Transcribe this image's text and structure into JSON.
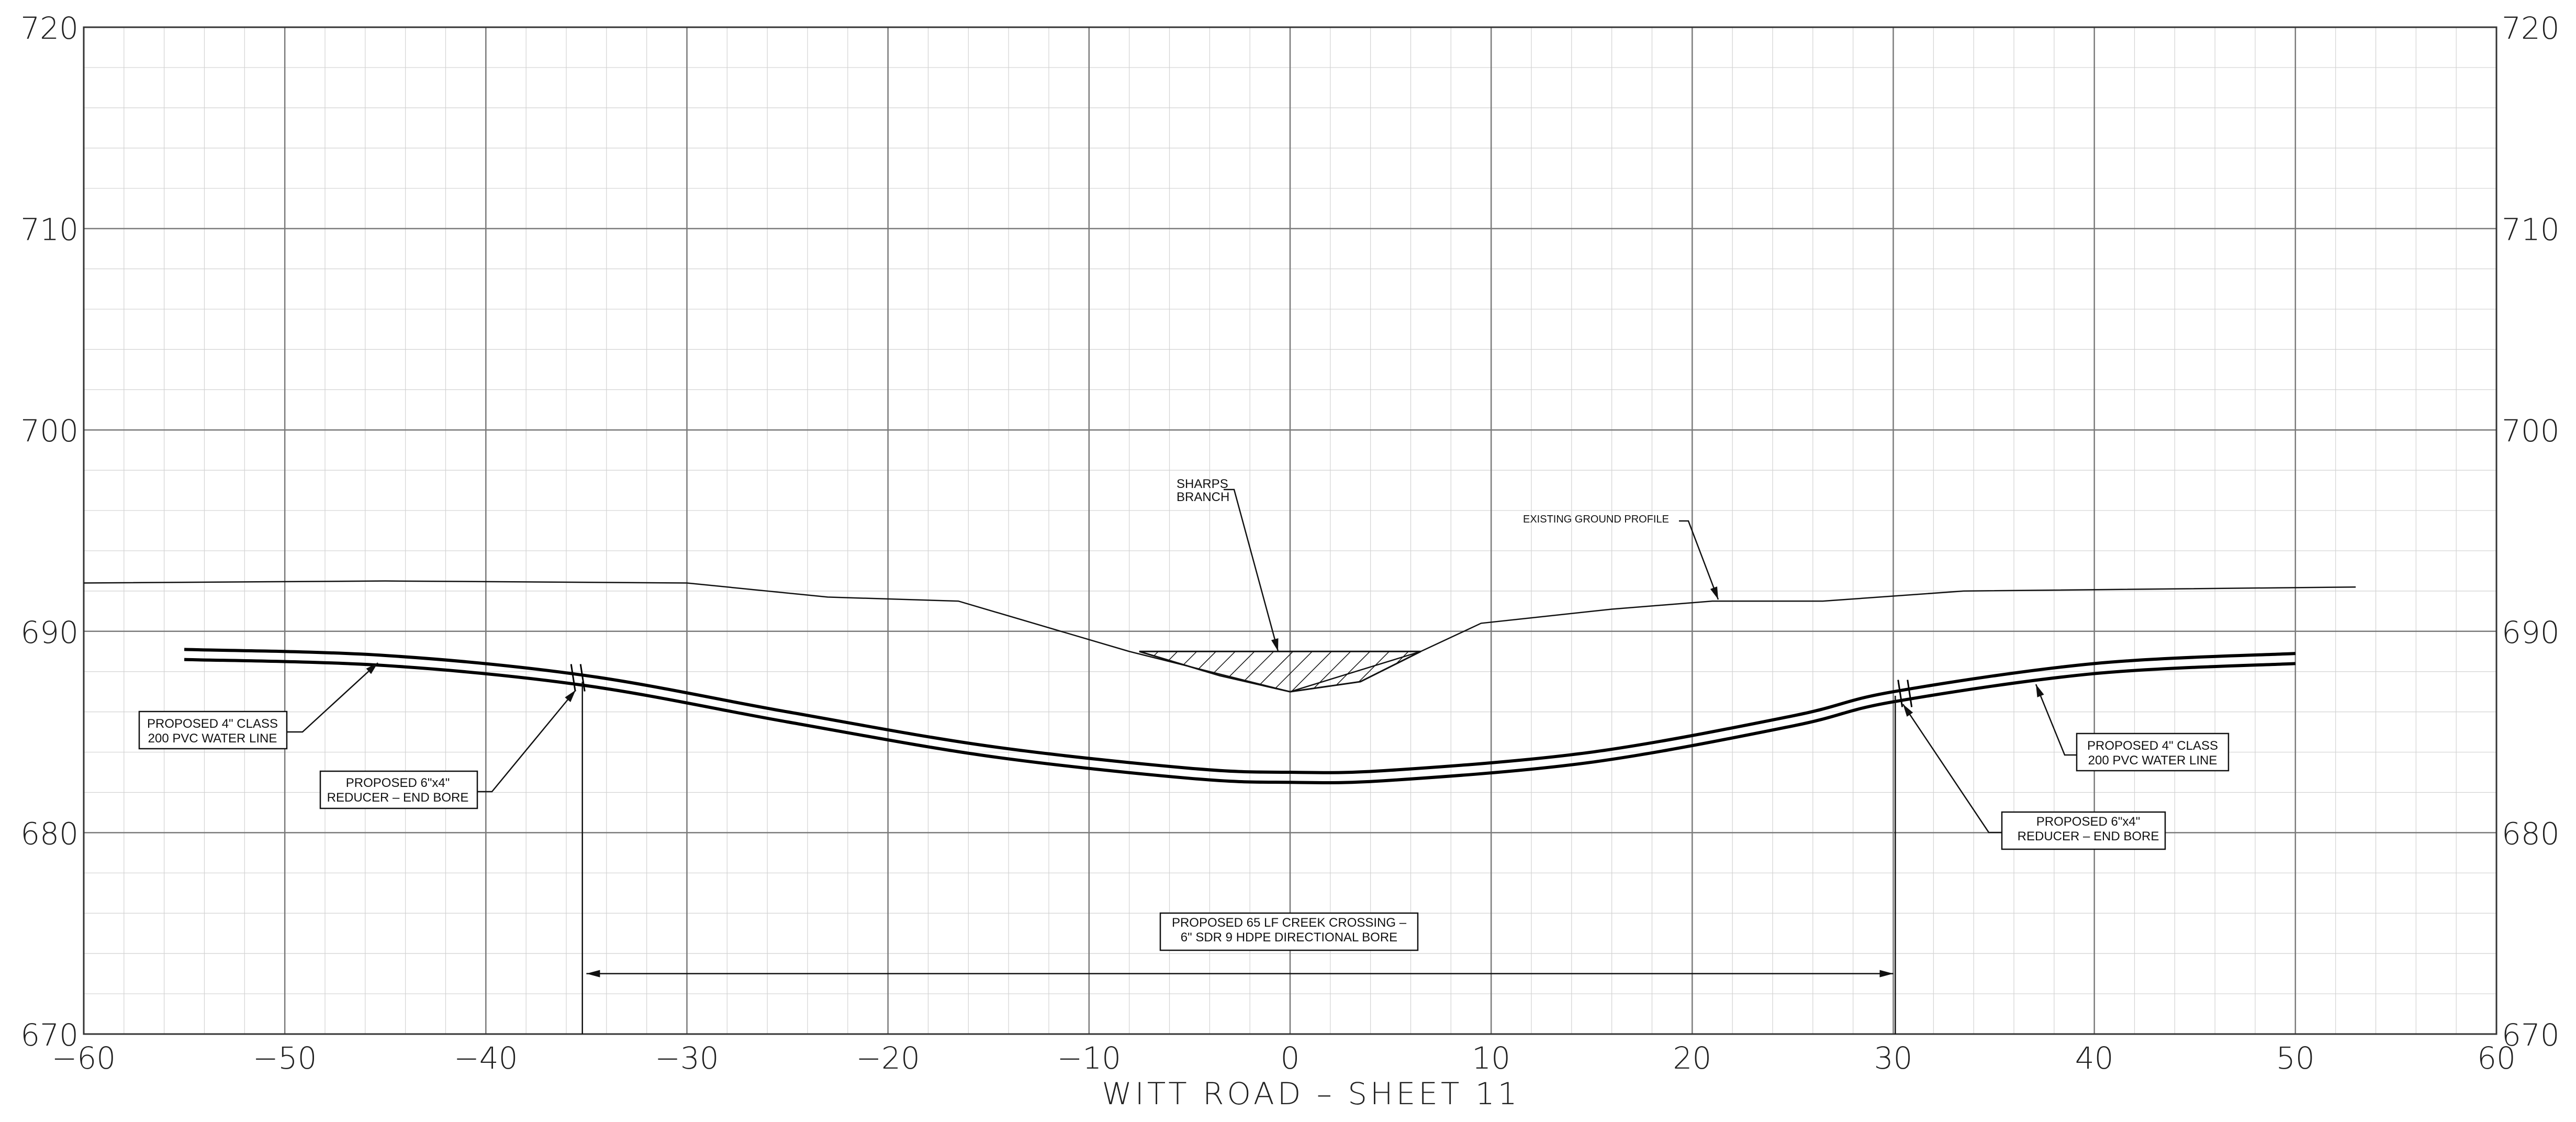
{
  "drawing": {
    "title": "WITT ROAD – SHEET 11",
    "x_ticks": [
      "−60",
      "−50",
      "−40",
      "−30",
      "−20",
      "−10",
      "0",
      "10",
      "20",
      "30",
      "40",
      "50",
      "60"
    ],
    "y_ticks": [
      "670",
      "680",
      "690",
      "700",
      "710",
      "720"
    ],
    "x_range": [
      -60,
      60
    ],
    "y_range": [
      670,
      720
    ],
    "grid": {
      "major_x": 10,
      "major_y": 10,
      "minor_x": 2,
      "minor_y": 2
    }
  },
  "callouts": {
    "sharps_branch": [
      "SHARPS",
      "BRANCH"
    ],
    "existing_ground": [
      "EXISTING GROUND PROFILE"
    ],
    "water_line_left": [
      "PROPOSED 4\" CLASS",
      "200 PVC WATER LINE"
    ],
    "reducer_left": [
      "PROPOSED 6\"x4\"",
      "REDUCER – END BORE"
    ],
    "water_line_right": [
      "PROPOSED 4\" CLASS",
      "200 PVC WATER LINE"
    ],
    "reducer_right": [
      "PROPOSED 6\"x4\"",
      "REDUCER – END BORE"
    ],
    "creek_crossing": [
      "PROPOSED 65 LF CREEK CROSSING –",
      "6\" SDR 9 HDPE DIRECTIONAL BORE"
    ]
  },
  "profiles": {
    "existing_ground": [
      [
        -60,
        692.4
      ],
      [
        -45,
        692.5
      ],
      [
        -30,
        692.4
      ],
      [
        -23,
        691.7
      ],
      [
        -16.5,
        691.5
      ],
      [
        -8,
        689
      ],
      [
        0,
        687
      ],
      [
        6.5,
        689
      ],
      [
        9.5,
        690.4
      ],
      [
        16,
        691.1
      ],
      [
        21,
        691.5
      ],
      [
        26.5,
        691.5
      ],
      [
        33.5,
        692
      ],
      [
        53,
        692.2
      ]
    ],
    "creek_water": [
      [
        -7.5,
        689
      ],
      [
        -3.5,
        687.8
      ],
      [
        0,
        687
      ],
      [
        3.5,
        687.5
      ],
      [
        6.5,
        689
      ]
    ],
    "proposed_water_line_top": [
      [
        -55,
        689.1
      ],
      [
        -45,
        688.8
      ],
      [
        -35,
        687.8
      ],
      [
        -25,
        686
      ],
      [
        -15,
        684.3
      ],
      [
        -5,
        683.2
      ],
      [
        0,
        683
      ],
      [
        5,
        683.1
      ],
      [
        15,
        684
      ],
      [
        25,
        685.8
      ],
      [
        30,
        687
      ],
      [
        40,
        688.4
      ],
      [
        50,
        688.9
      ]
    ],
    "reducer_stations": [
      -35.5,
      30.5
    ],
    "bore_dimension": {
      "from": -35,
      "to": 30,
      "elevation": 673
    }
  },
  "colors": {
    "line": "#111111",
    "major_grid": "#7a7a7a",
    "minor_grid": "#cfcfcf",
    "background": "#ffffff"
  }
}
